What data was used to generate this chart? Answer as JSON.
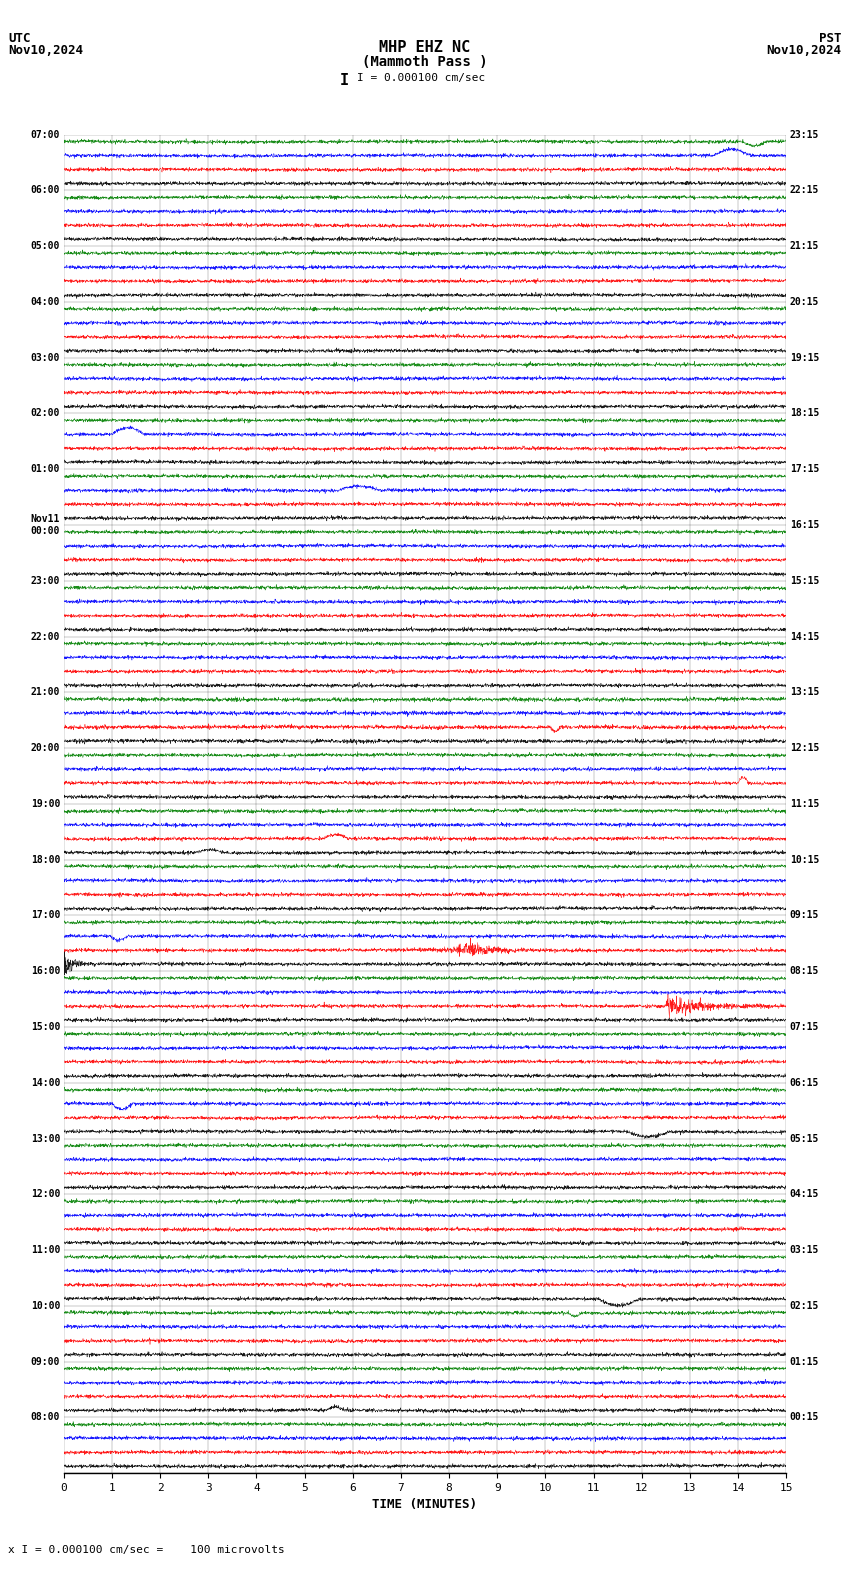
{
  "title_line1": "MHP EHZ NC",
  "title_line2": "(Mammoth Pass )",
  "title_line3": "I = 0.000100 cm/sec",
  "utc_label": "UTC",
  "utc_date": "Nov10,2024",
  "pst_label": "PST",
  "pst_date": "Nov10,2024",
  "xlabel": "TIME (MINUTES)",
  "footer": "x I = 0.000100 cm/sec =    100 microvolts",
  "left_labels": [
    "08:00",
    "09:00",
    "10:00",
    "11:00",
    "12:00",
    "13:00",
    "14:00",
    "15:00",
    "16:00",
    "17:00",
    "18:00",
    "19:00",
    "20:00",
    "21:00",
    "22:00",
    "23:00",
    "Nov11\n00:00",
    "01:00",
    "02:00",
    "03:00",
    "04:00",
    "05:00",
    "06:00",
    "07:00"
  ],
  "right_labels": [
    "00:15",
    "01:15",
    "02:15",
    "03:15",
    "04:15",
    "05:15",
    "06:15",
    "07:15",
    "08:15",
    "09:15",
    "10:15",
    "11:15",
    "12:15",
    "13:15",
    "14:15",
    "15:15",
    "16:15",
    "17:15",
    "18:15",
    "19:15",
    "20:15",
    "21:15",
    "22:15",
    "23:15"
  ],
  "n_rows": 24,
  "n_traces_per_row": 4,
  "colors": [
    "black",
    "red",
    "blue",
    "green"
  ],
  "bg_color": "white",
  "x_min": 0,
  "x_max": 15,
  "x_ticks": [
    0,
    1,
    2,
    3,
    4,
    5,
    6,
    7,
    8,
    9,
    10,
    11,
    12,
    13,
    14,
    15
  ],
  "noise_base_amp": 0.12,
  "seed": 42
}
